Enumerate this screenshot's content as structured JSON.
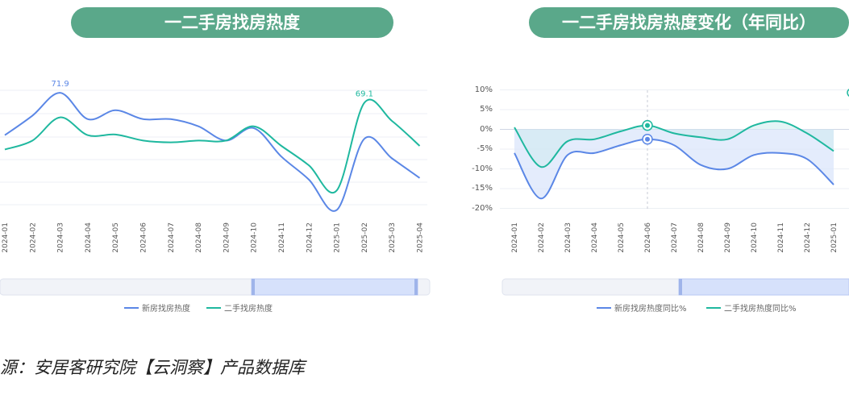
{
  "charts": [
    {
      "title": "一二手房找房热度",
      "legend": [
        "新房找房热度",
        "二手找房热度"
      ],
      "data_labels": [
        "71.9",
        "69.1"
      ],
      "colors": [
        "#5b87e6",
        "#1fb89f"
      ]
    },
    {
      "title": "一二手房找房热度变化（年同比）",
      "legend": [
        "新房找房热度同比%",
        "二手找房热度同比%"
      ],
      "yticks": [
        "10%",
        "5%",
        "0%",
        "-5%",
        "-10%",
        "-15%",
        "-20%"
      ],
      "colors": [
        "#5b87e6",
        "#1fb89f"
      ]
    }
  ],
  "source": "源：安居客研究院【云洞察】产品数据库",
  "chart_data": [
    {
      "type": "line",
      "title": "一二手房找房热度",
      "categories": [
        "2024-01",
        "2024-02",
        "2024-03",
        "2024-04",
        "2024-05",
        "2024-06",
        "2024-07",
        "2024-08",
        "2024-09",
        "2024-10",
        "2024-11",
        "2024-12",
        "2025-01",
        "2025-02",
        "2025-03",
        "2025-04"
      ],
      "series": [
        {
          "name": "新房找房热度",
          "values": [
            60,
            65.5,
            71.9,
            64.5,
            67,
            64.5,
            64.5,
            62.5,
            58.5,
            62,
            54,
            47.5,
            39,
            59,
            53.5,
            48
          ]
        },
        {
          "name": "二手找房热度",
          "values": [
            56,
            58.5,
            65,
            60,
            60.2,
            58.5,
            58,
            58.5,
            58.5,
            62.5,
            57,
            51.5,
            44.5,
            69.1,
            64,
            57
          ]
        }
      ],
      "data_labels": {
        "新房找房热度": {
          "2024-03": 71.9
        },
        "二手找房热度": {
          "2025-02": 69.1
        }
      },
      "ylim": [
        38,
        76
      ]
    },
    {
      "type": "area",
      "title": "一二手房找房热度变化（年同比）",
      "categories": [
        "2024-01",
        "2024-02",
        "2024-03",
        "2024-04",
        "2024-05",
        "2024-06",
        "2024-07",
        "2024-08",
        "2024-09",
        "2024-10",
        "2024-11",
        "2024-12",
        "2025-01"
      ],
      "series": [
        {
          "name": "新房找房热度同比%",
          "values": [
            -6,
            -17.5,
            -6.5,
            -6,
            -4,
            -2.5,
            -4,
            -9,
            -10,
            -6.5,
            -6,
            -7.5,
            -14
          ]
        },
        {
          "name": "二手找房热度同比%",
          "values": [
            0.5,
            -9.5,
            -3,
            -2.5,
            -0.5,
            1,
            -1,
            -2,
            -2.5,
            1,
            2,
            -1,
            -5.5
          ]
        }
      ],
      "yticks": [
        10,
        5,
        0,
        -5,
        -10,
        -15,
        -20
      ],
      "ylim": [
        -20,
        10
      ],
      "legend_position": "bottom"
    }
  ]
}
